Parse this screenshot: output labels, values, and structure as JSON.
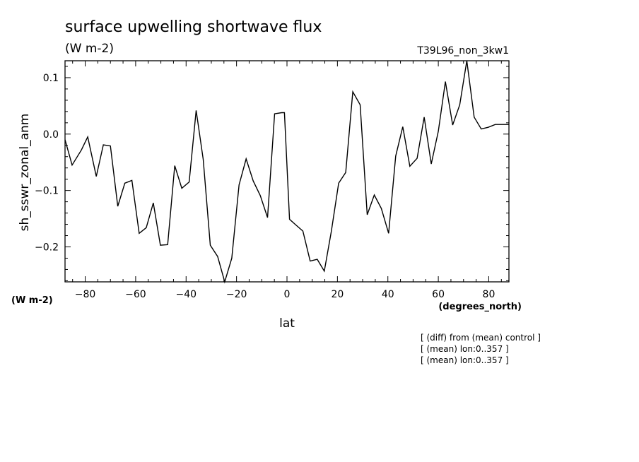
{
  "chart_data": {
    "type": "line",
    "title": "surface upwelling shortwave flux",
    "units": "(W m-2)",
    "experiment": "T39L96_non_3kw1",
    "ylabel": "sh_sswr_zonal_anm",
    "yunits": "(W m-2)",
    "xlabel": "lat",
    "xunits": "(degrees_north)",
    "notes": [
      "[ (diff) from (mean) control ]",
      "[ (mean) lon:0..357 ]",
      "[ (mean) lon:0..357 ]"
    ],
    "xlim": [
      -88,
      88
    ],
    "ylim": [
      -0.262,
      0.13
    ],
    "x_ticks": [
      -80,
      -60,
      -40,
      -20,
      0,
      20,
      40,
      60,
      80
    ],
    "x_tick_labels": [
      "−80",
      "−60",
      "−40",
      "−20",
      "0",
      "20",
      "40",
      "60",
      "80"
    ],
    "y_ticks": [
      -0.2,
      -0.1,
      0.0,
      0.1
    ],
    "y_tick_labels": [
      "−0.2",
      "−0.1",
      "0.0",
      "0.1"
    ],
    "grid": false,
    "series": [
      {
        "x": [
          -88.0,
          -85.2,
          -81.5,
          -79.0,
          -75.6,
          -72.8,
          -70.0,
          -67.1,
          -64.3,
          -61.5,
          -58.6,
          -55.8,
          -53.0,
          -50.2,
          -47.3,
          -44.5,
          -41.7,
          -38.8,
          -36.0,
          -33.2,
          -30.4,
          -27.5,
          -24.7,
          -21.9,
          -19.0,
          -16.2,
          -13.4,
          -10.6,
          -7.7,
          -4.9,
          -2.1,
          -1.0,
          1.0,
          3.5,
          6.3,
          9.2,
          12.0,
          14.8,
          17.6,
          20.5,
          23.3,
          26.1,
          29.0,
          31.8,
          34.6,
          37.4,
          40.3,
          43.1,
          45.9,
          48.7,
          51.6,
          54.4,
          57.2,
          60.0,
          62.8,
          65.7,
          68.5,
          71.3,
          74.2,
          77.0,
          79.8,
          82.6,
          85.5,
          88.0
        ],
        "y": [
          -0.01,
          -0.055,
          -0.028,
          -0.005,
          -0.075,
          -0.019,
          -0.021,
          -0.128,
          -0.087,
          -0.082,
          -0.176,
          -0.166,
          -0.122,
          -0.197,
          -0.196,
          -0.056,
          -0.096,
          -0.085,
          0.042,
          -0.045,
          -0.197,
          -0.217,
          -0.262,
          -0.22,
          -0.09,
          -0.044,
          -0.083,
          -0.109,
          -0.148,
          0.036,
          0.038,
          0.038,
          -0.151,
          -0.161,
          -0.172,
          -0.225,
          -0.222,
          -0.243,
          -0.172,
          -0.087,
          -0.068,
          0.075,
          0.052,
          -0.143,
          -0.108,
          -0.132,
          -0.176,
          -0.039,
          0.013,
          -0.057,
          -0.043,
          0.03,
          -0.053,
          0.005,
          0.093,
          0.016,
          0.052,
          0.13,
          0.03,
          0.009,
          0.012,
          0.017,
          0.017,
          0.017
        ]
      }
    ]
  }
}
